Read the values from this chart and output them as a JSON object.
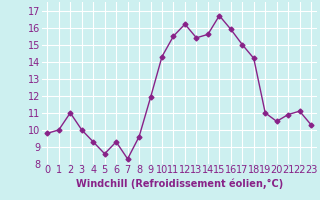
{
  "x": [
    0,
    1,
    2,
    3,
    4,
    5,
    6,
    7,
    8,
    9,
    10,
    11,
    12,
    13,
    14,
    15,
    16,
    17,
    18,
    19,
    20,
    21,
    22,
    23
  ],
  "y": [
    9.8,
    10.0,
    11.0,
    10.0,
    9.3,
    8.6,
    9.3,
    8.3,
    9.6,
    11.9,
    14.3,
    15.5,
    16.2,
    15.4,
    15.6,
    16.7,
    15.9,
    15.0,
    14.2,
    11.0,
    10.5,
    10.9,
    11.1,
    10.3
  ],
  "line_color": "#882288",
  "marker": "D",
  "markersize": 2.5,
  "linewidth": 1.0,
  "xlabel": "Windchill (Refroidissement éolien,°C)",
  "xlim": [
    -0.5,
    23.5
  ],
  "ylim": [
    8,
    17.5
  ],
  "yticks": [
    8,
    9,
    10,
    11,
    12,
    13,
    14,
    15,
    16,
    17
  ],
  "xticks": [
    0,
    1,
    2,
    3,
    4,
    5,
    6,
    7,
    8,
    9,
    10,
    11,
    12,
    13,
    14,
    15,
    16,
    17,
    18,
    19,
    20,
    21,
    22,
    23
  ],
  "bg_color": "#cdf0f0",
  "grid_color": "#ffffff",
  "tick_label_color": "#882288",
  "xlabel_color": "#882288",
  "xlabel_fontsize": 7,
  "tick_fontsize": 7
}
